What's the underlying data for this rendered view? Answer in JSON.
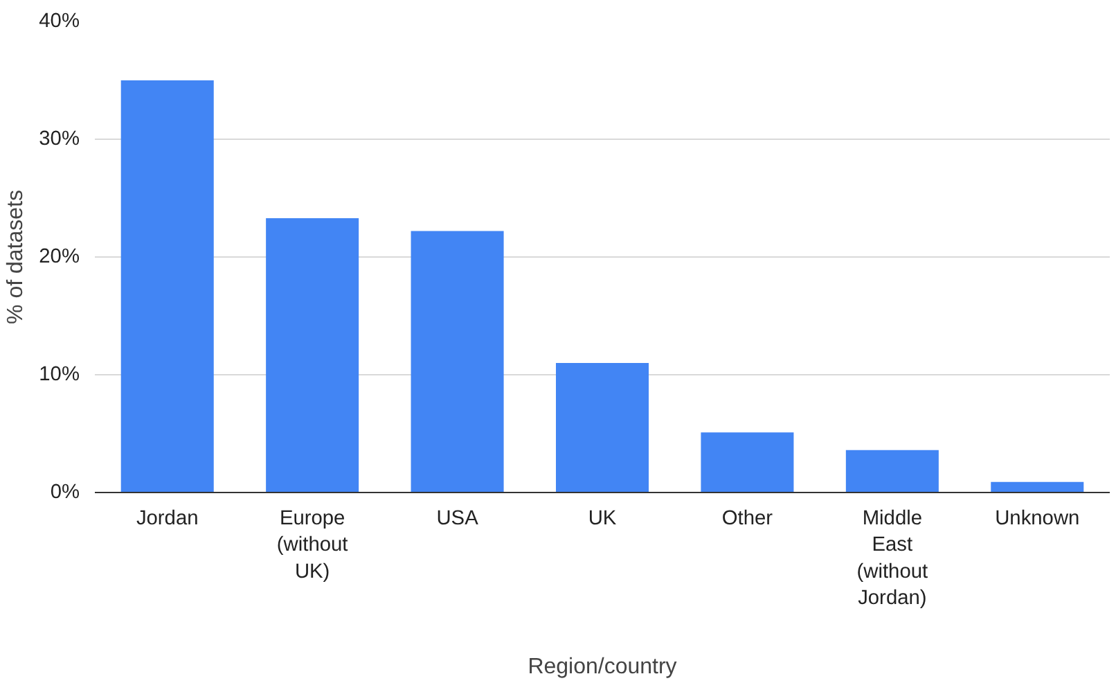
{
  "chart_data": {
    "type": "bar",
    "xlabel": "Region/country",
    "ylabel": "% of datasets",
    "categories": [
      "Jordan",
      "Europe\n(without\nUK)",
      "USA",
      "UK",
      "Other",
      "Middle\nEast\n(without\nJordan)",
      "Unknown"
    ],
    "values": [
      35,
      23.3,
      22.2,
      11.0,
      5.1,
      3.6,
      0.9
    ],
    "color": "#4285f4",
    "ylim": [
      0,
      40
    ],
    "yticks": [
      {
        "value": 0,
        "label": "0%"
      },
      {
        "value": 10,
        "label": "10%"
      },
      {
        "value": 20,
        "label": "20%"
      },
      {
        "value": 30,
        "label": "30%"
      },
      {
        "value": 40,
        "label": "40%"
      }
    ],
    "grid": "y"
  }
}
